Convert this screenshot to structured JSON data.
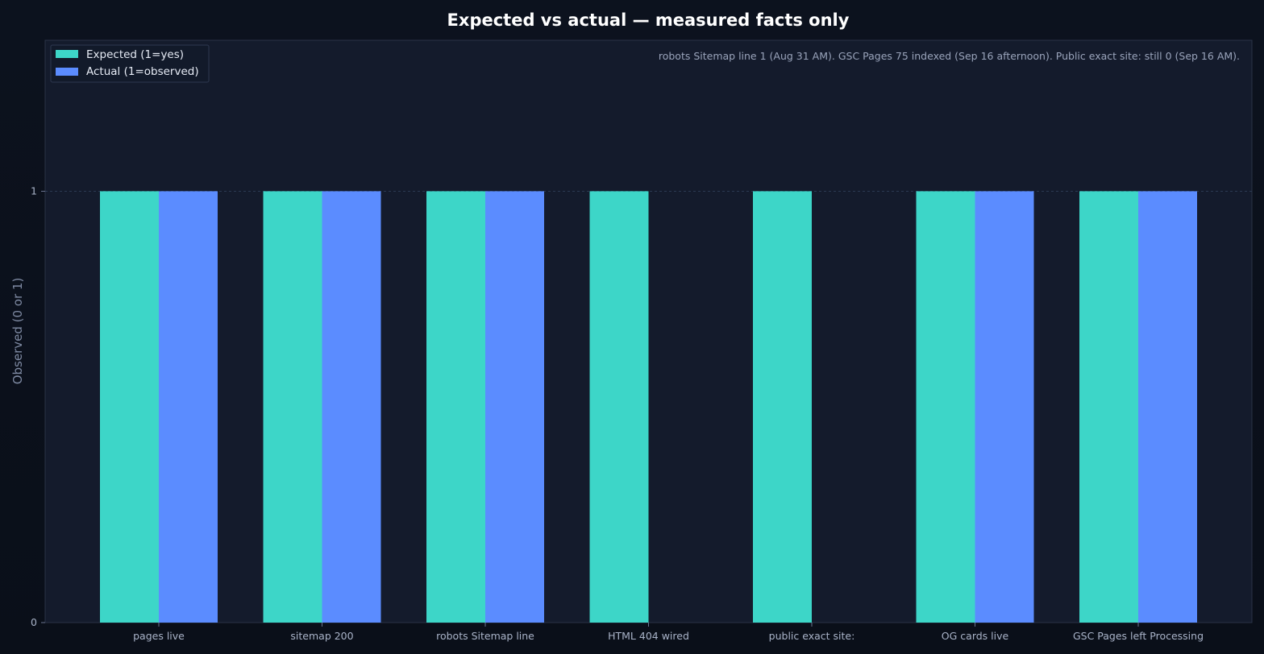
{
  "chart_data": {
    "type": "bar",
    "title": "Expected vs actual — measured facts only",
    "xlabel": "",
    "ylabel": "Observed (0 or 1)",
    "ylim": [
      0,
      1.35
    ],
    "yticks": [
      0,
      1
    ],
    "grid": "horizontal dashed at y=1",
    "legend_position": "top-left",
    "annotation": "robots Sitemap line 1 (Aug 31 AM). GSC Pages 75 indexed (Sep 16 afternoon). Public exact site: still 0 (Sep 16 AM).",
    "categories": [
      "pages live",
      "sitemap 200",
      "robots Sitemap line",
      "HTML 404 wired",
      "public exact site:",
      "OG cards live",
      "GSC Pages left Processing"
    ],
    "series": [
      {
        "name": "Expected (1=yes)",
        "color": "#3dd6c8",
        "values": [
          1,
          1,
          1,
          1,
          1,
          1,
          1
        ]
      },
      {
        "name": "Actual (1=observed)",
        "color": "#5b8cff",
        "values": [
          1,
          1,
          1,
          0,
          0,
          1,
          1
        ]
      }
    ]
  },
  "colors": {
    "plot_background": "#141b2c",
    "plot_border": "#2a3346",
    "grid": "#2b3a52"
  }
}
